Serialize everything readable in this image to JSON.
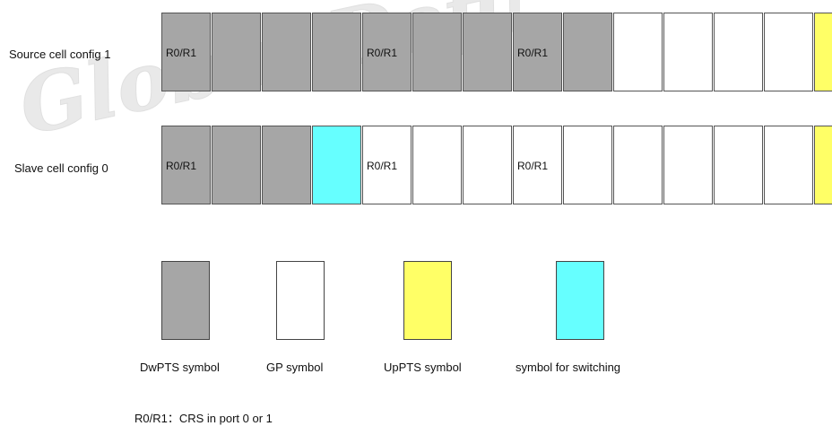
{
  "watermark": "Global Definite",
  "rows": [
    {
      "label": "Source cell config 1",
      "cells": [
        {
          "type": "dwpts",
          "text": "R0/R1"
        },
        {
          "type": "dwpts",
          "text": ""
        },
        {
          "type": "dwpts",
          "text": ""
        },
        {
          "type": "dwpts",
          "text": ""
        },
        {
          "type": "dwpts",
          "text": "R0/R1"
        },
        {
          "type": "dwpts",
          "text": ""
        },
        {
          "type": "dwpts",
          "text": ""
        },
        {
          "type": "dwpts",
          "text": "R0/R1"
        },
        {
          "type": "dwpts",
          "text": ""
        },
        {
          "type": "gp",
          "text": ""
        },
        {
          "type": "gp",
          "text": ""
        },
        {
          "type": "gp",
          "text": ""
        },
        {
          "type": "gp",
          "text": ""
        },
        {
          "type": "uppts",
          "text": ""
        }
      ]
    },
    {
      "label": "Slave cell config 0",
      "cells": [
        {
          "type": "dwpts",
          "text": "R0/R1"
        },
        {
          "type": "dwpts",
          "text": ""
        },
        {
          "type": "dwpts",
          "text": ""
        },
        {
          "type": "switch",
          "text": ""
        },
        {
          "type": "gp",
          "text": "R0/R1"
        },
        {
          "type": "gp",
          "text": ""
        },
        {
          "type": "gp",
          "text": ""
        },
        {
          "type": "gp",
          "text": "R0/R1"
        },
        {
          "type": "gp",
          "text": ""
        },
        {
          "type": "gp",
          "text": ""
        },
        {
          "type": "gp",
          "text": ""
        },
        {
          "type": "gp",
          "text": ""
        },
        {
          "type": "gp",
          "text": ""
        },
        {
          "type": "uppts",
          "text": ""
        }
      ]
    }
  ],
  "colors": {
    "dwpts": "#a6a6a6",
    "gp": "#ffffff",
    "uppts": "#ffff66",
    "switch": "#66ffff"
  },
  "legend": [
    {
      "type": "dwpts",
      "label": "DwPTS symbol"
    },
    {
      "type": "gp",
      "label": "GP symbol"
    },
    {
      "type": "uppts",
      "label": "UpPTS symbol"
    },
    {
      "type": "switch",
      "label": "symbol for switching"
    }
  ],
  "note": "R0/R1：CRS in port 0 or 1"
}
